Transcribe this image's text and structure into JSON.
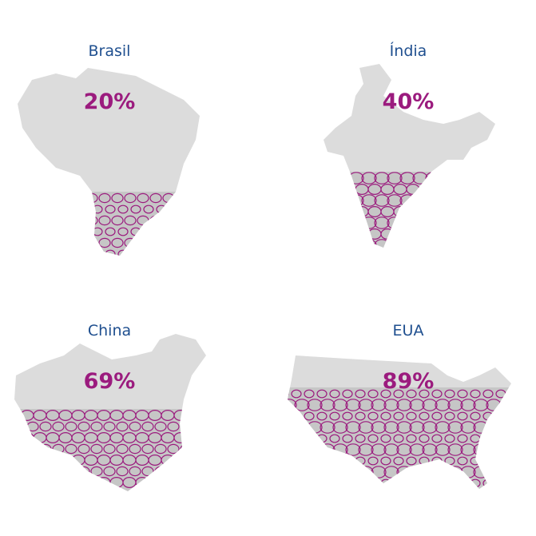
{
  "panels": [
    {
      "name": "Brasil",
      "percent": "20%"
    },
    {
      "name": "Índia",
      "percent": "40%"
    },
    {
      "name": "China",
      "percent": "69%"
    },
    {
      "name": "EUA",
      "percent": "89%"
    }
  ]
}
